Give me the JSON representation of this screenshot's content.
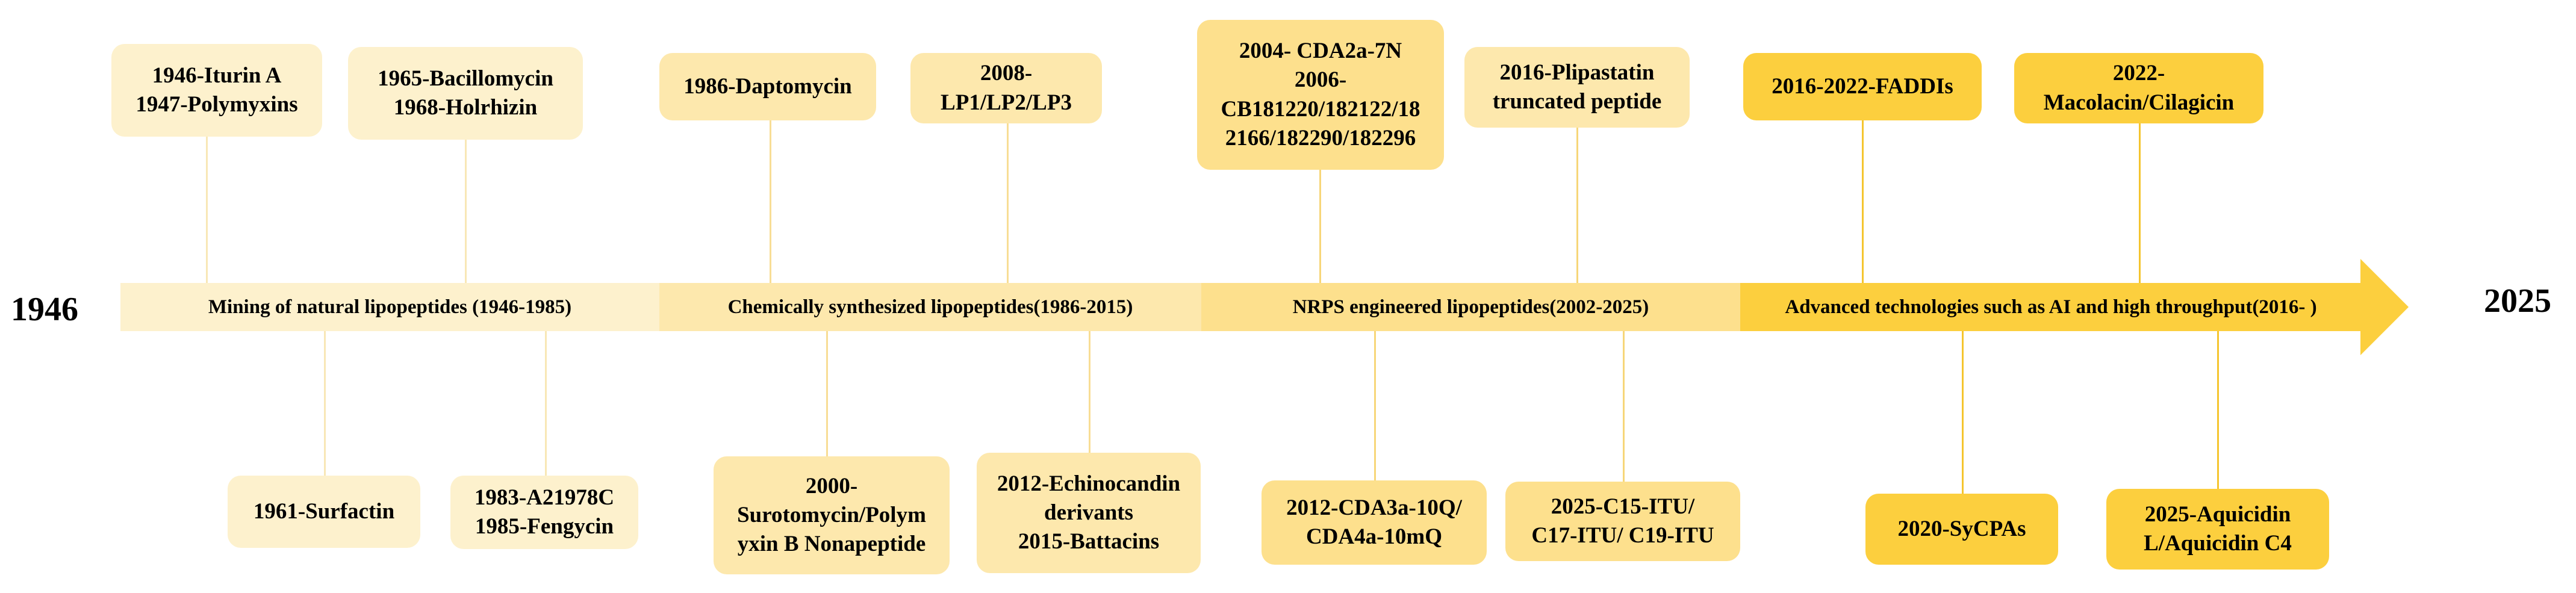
{
  "start_year": "1946",
  "end_year": "2025",
  "eras": [
    {
      "label": "Mining of natural lipopeptides (1946-1985)"
    },
    {
      "label": "Chemically  synthesized lipopeptides(1986-2015)"
    },
    {
      "label": "NRPS engineered lipopeptides(2002-2025)"
    },
    {
      "label": "Advanced technologies such as AI and high throughput(2016-  )"
    }
  ],
  "events_above": [
    {
      "lines": [
        "1946-Iturin A",
        "1947-Polymyxins"
      ]
    },
    {
      "lines": [
        "1965-Bacillomycin",
        "1968-Holrhizin"
      ]
    },
    {
      "lines": [
        "1986-Daptomycin"
      ]
    },
    {
      "lines": [
        "2008-",
        "LP1/LP2/LP3"
      ]
    },
    {
      "lines": [
        "2004- CDA2a-7N",
        "2006-",
        "CB181220/182122/18",
        "2166/182290/182296"
      ]
    },
    {
      "lines": [
        "2016-Plipastatin",
        "truncated peptide"
      ]
    },
    {
      "lines": [
        "2016-2022-FADDIs"
      ]
    },
    {
      "lines": [
        "2022-",
        "Macolacin/Cilagicin"
      ]
    }
  ],
  "events_below": [
    {
      "lines": [
        "1961-Surfactin"
      ]
    },
    {
      "lines": [
        "1983-A21978C",
        "1985-Fengycin"
      ]
    },
    {
      "lines": [
        "2000-",
        "Surotomycin/Polym",
        "yxin B Nonapeptide"
      ]
    },
    {
      "lines": [
        "2012-Echinocandin",
        "derivants",
        "2015-Battacins"
      ]
    },
    {
      "lines": [
        "2012-CDA3a-10Q/",
        "CDA4a-10mQ"
      ]
    },
    {
      "lines": [
        "2025-C15-ITU/",
        "C17-ITU/ C19-ITU"
      ]
    },
    {
      "lines": [
        "2020-SyCPAs"
      ]
    },
    {
      "lines": [
        "2025-Aquicidin",
        "L/Aquicidin C4"
      ]
    }
  ]
}
